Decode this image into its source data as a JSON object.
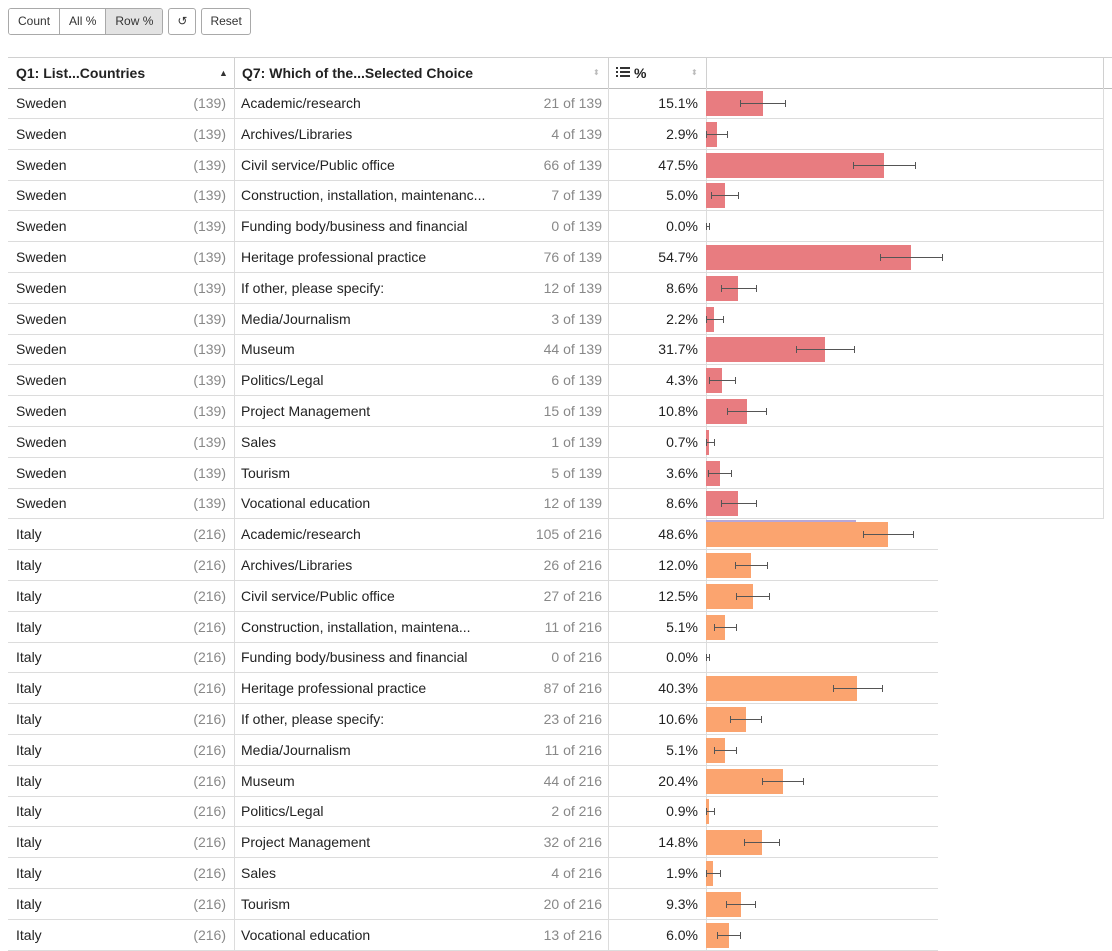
{
  "toolbar": {
    "count_label": "Count",
    "all_label": "All %",
    "row_label": "Row %",
    "refresh_icon": "↺",
    "reset_label": "Reset"
  },
  "columns": {
    "q1": "Q1: List...Countries",
    "q7": "Q7: Which of the...Selected Choice",
    "pct": "%",
    "pct_icon": "list-icon"
  },
  "colors": {
    "sweden": "#e87c80",
    "italy": "#fba46f",
    "divider": "#b7a7d8"
  },
  "rows": [
    {
      "country": "Sweden",
      "base": "(139)",
      "choice": "Academic/research",
      "frac": "21 of 139",
      "pct": "15.1%",
      "value": 15.1
    },
    {
      "country": "Sweden",
      "base": "(139)",
      "choice": "Archives/Libraries",
      "frac": "4 of 139",
      "pct": "2.9%",
      "value": 2.9
    },
    {
      "country": "Sweden",
      "base": "(139)",
      "choice": "Civil service/Public office",
      "frac": "66 of 139",
      "pct": "47.5%",
      "value": 47.5
    },
    {
      "country": "Sweden",
      "base": "(139)",
      "choice": "Construction, installation, maintenanc...",
      "frac": "7 of 139",
      "pct": "5.0%",
      "value": 5.0
    },
    {
      "country": "Sweden",
      "base": "(139)",
      "choice": "Funding body/business and financial",
      "frac": "0 of 139",
      "pct": "0.0%",
      "value": 0.0
    },
    {
      "country": "Sweden",
      "base": "(139)",
      "choice": "Heritage professional practice",
      "frac": "76 of 139",
      "pct": "54.7%",
      "value": 54.7
    },
    {
      "country": "Sweden",
      "base": "(139)",
      "choice": "If other, please specify:",
      "frac": "12 of 139",
      "pct": "8.6%",
      "value": 8.6
    },
    {
      "country": "Sweden",
      "base": "(139)",
      "choice": "Media/Journalism",
      "frac": "3 of 139",
      "pct": "2.2%",
      "value": 2.2
    },
    {
      "country": "Sweden",
      "base": "(139)",
      "choice": "Museum",
      "frac": "44 of 139",
      "pct": "31.7%",
      "value": 31.7
    },
    {
      "country": "Sweden",
      "base": "(139)",
      "choice": "Politics/Legal",
      "frac": "6 of 139",
      "pct": "4.3%",
      "value": 4.3
    },
    {
      "country": "Sweden",
      "base": "(139)",
      "choice": "Project Management",
      "frac": "15 of 139",
      "pct": "10.8%",
      "value": 10.8
    },
    {
      "country": "Sweden",
      "base": "(139)",
      "choice": "Sales",
      "frac": "1 of 139",
      "pct": "0.7%",
      "value": 0.7
    },
    {
      "country": "Sweden",
      "base": "(139)",
      "choice": "Tourism",
      "frac": "5 of 139",
      "pct": "3.6%",
      "value": 3.6
    },
    {
      "country": "Sweden",
      "base": "(139)",
      "choice": "Vocational education",
      "frac": "12 of 139",
      "pct": "8.6%",
      "value": 8.6
    },
    {
      "country": "Italy",
      "base": "(216)",
      "choice": "Academic/research",
      "frac": "105 of 216",
      "pct": "48.6%",
      "value": 48.6
    },
    {
      "country": "Italy",
      "base": "(216)",
      "choice": "Archives/Libraries",
      "frac": "26 of 216",
      "pct": "12.0%",
      "value": 12.0
    },
    {
      "country": "Italy",
      "base": "(216)",
      "choice": "Civil service/Public office",
      "frac": "27 of 216",
      "pct": "12.5%",
      "value": 12.5
    },
    {
      "country": "Italy",
      "base": "(216)",
      "choice": "Construction, installation, maintena...",
      "frac": "11 of 216",
      "pct": "5.1%",
      "value": 5.1
    },
    {
      "country": "Italy",
      "base": "(216)",
      "choice": "Funding body/business and financial",
      "frac": "0 of 216",
      "pct": "0.0%",
      "value": 0.0
    },
    {
      "country": "Italy",
      "base": "(216)",
      "choice": "Heritage professional practice",
      "frac": "87 of 216",
      "pct": "40.3%",
      "value": 40.3
    },
    {
      "country": "Italy",
      "base": "(216)",
      "choice": "If other, please specify:",
      "frac": "23 of 216",
      "pct": "10.6%",
      "value": 10.6
    },
    {
      "country": "Italy",
      "base": "(216)",
      "choice": "Media/Journalism",
      "frac": "11 of 216",
      "pct": "5.1%",
      "value": 5.1
    },
    {
      "country": "Italy",
      "base": "(216)",
      "choice": "Museum",
      "frac": "44 of 216",
      "pct": "20.4%",
      "value": 20.4
    },
    {
      "country": "Italy",
      "base": "(216)",
      "choice": "Politics/Legal",
      "frac": "2 of 216",
      "pct": "0.9%",
      "value": 0.9
    },
    {
      "country": "Italy",
      "base": "(216)",
      "choice": "Project Management",
      "frac": "32 of 216",
      "pct": "14.8%",
      "value": 14.8
    },
    {
      "country": "Italy",
      "base": "(216)",
      "choice": "Sales",
      "frac": "4 of 216",
      "pct": "1.9%",
      "value": 1.9
    },
    {
      "country": "Italy",
      "base": "(216)",
      "choice": "Tourism",
      "frac": "20 of 216",
      "pct": "9.3%",
      "value": 9.3
    },
    {
      "country": "Italy",
      "base": "(216)",
      "choice": "Vocational education",
      "frac": "13 of 216",
      "pct": "6.0%",
      "value": 6.0
    }
  ]
}
